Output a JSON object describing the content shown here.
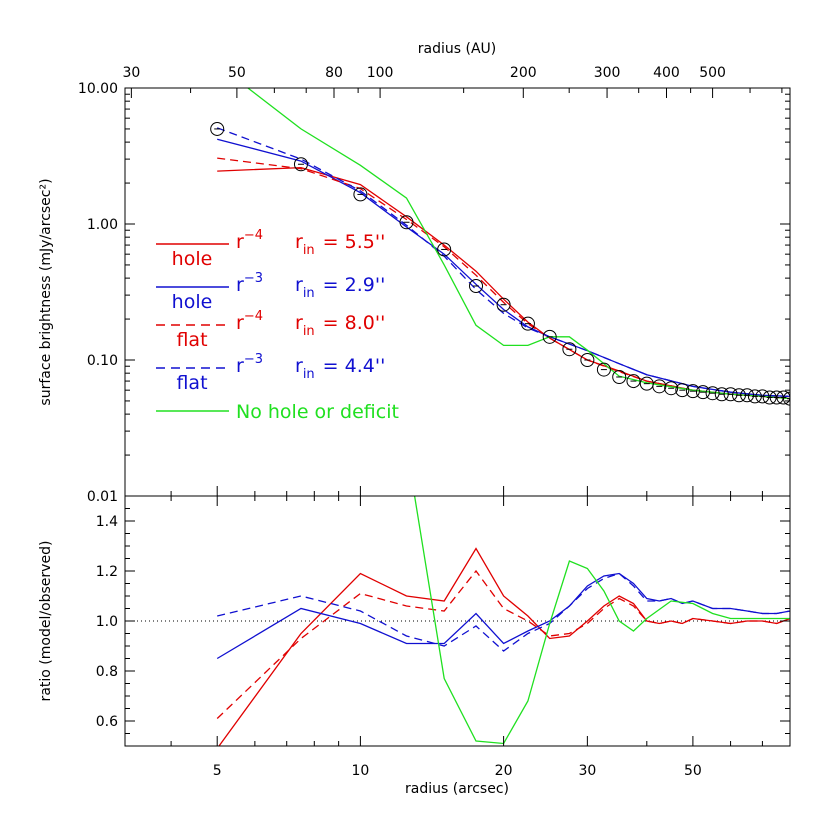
{
  "chart_data": [
    {
      "type": "line",
      "panel": "top",
      "xscale": "log",
      "yscale": "log",
      "xlim": [
        3.2,
        80
      ],
      "ylim": [
        0.01,
        10
      ],
      "ylabel": "surface brightness (mJy/arcsec²)",
      "top_xlabel": "radius (AU)",
      "top_ticks": [
        {
          "label": "30",
          "value": 3.3
        },
        {
          "label": "50",
          "value": 5.5
        },
        {
          "label": "80",
          "value": 8.8
        },
        {
          "label": "100",
          "value": 11
        },
        {
          "label": "200",
          "value": 22
        },
        {
          "label": "300",
          "value": 33
        },
        {
          "label": "400",
          "value": 44
        },
        {
          "label": "500",
          "value": 55
        }
      ],
      "ytick_labels": [
        {
          "label": "10.00",
          "value": 10
        },
        {
          "label": "1.00",
          "value": 1
        },
        {
          "label": "0.10",
          "value": 0.1
        },
        {
          "label": "0.01",
          "value": 0.01
        }
      ],
      "legend_placement": "left-middle",
      "legend": [
        {
          "sub": "hole",
          "text": "r",
          "exp": "−4",
          "rin_label": "r",
          "rin_sub": "in",
          "rin_value": "= 5.5''",
          "color": "#e00000",
          "dash": "solid"
        },
        {
          "sub": "hole",
          "text": "r",
          "exp": "−3",
          "rin_label": "r",
          "rin_sub": "in",
          "rin_value": "= 2.9''",
          "color": "#1010d0",
          "dash": "solid"
        },
        {
          "sub": "flat",
          "text": "r",
          "exp": "−4",
          "rin_label": "r",
          "rin_sub": "in",
          "rin_value": "= 8.0''",
          "color": "#e00000",
          "dash": "dashed"
        },
        {
          "sub": "flat",
          "text": "r",
          "exp": "−3",
          "rin_label": "r",
          "rin_sub": "in",
          "rin_value": "= 4.4''",
          "color": "#1010d0",
          "dash": "dashed"
        },
        {
          "sub": "",
          "text": "No hole or deficit",
          "exp": "",
          "rin_label": "",
          "rin_sub": "",
          "rin_value": "",
          "color": "#20e020",
          "dash": "solid"
        }
      ],
      "observed": {
        "x": [
          5,
          7.5,
          10,
          12.5,
          15,
          17.5,
          20,
          22.5,
          25,
          27.5,
          30,
          32.5,
          35,
          37.5,
          40,
          42.5,
          45,
          47.5,
          50,
          52.5,
          55,
          57.5,
          60,
          62.5,
          65,
          67.5,
          70,
          72.5,
          75,
          77.5,
          80
        ],
        "y": [
          5.0,
          2.75,
          1.65,
          1.03,
          0.65,
          0.35,
          0.255,
          0.185,
          0.148,
          0.12,
          0.1,
          0.085,
          0.075,
          0.07,
          0.067,
          0.064,
          0.062,
          0.06,
          0.059,
          0.058,
          0.057,
          0.056,
          0.056,
          0.055,
          0.055,
          0.054,
          0.054,
          0.053,
          0.053,
          0.053,
          0.052
        ]
      },
      "series": [
        {
          "x": [
            5,
            7.5,
            10,
            12.5,
            15,
            17.5,
            20,
            22.5,
            25,
            30,
            35,
            40,
            50,
            60,
            70,
            80
          ],
          "y": [
            2.45,
            2.6,
            1.95,
            1.13,
            0.7,
            0.45,
            0.28,
            0.19,
            0.145,
            0.1,
            0.083,
            0.07,
            0.06,
            0.056,
            0.054,
            0.052
          ],
          "color": "#e00000",
          "dash": "solid"
        },
        {
          "x": [
            5,
            7.5,
            10,
            12.5,
            15,
            17.5,
            20,
            22.5,
            25,
            30,
            35,
            40,
            50,
            60,
            70,
            80
          ],
          "y": [
            4.2,
            2.9,
            1.7,
            0.95,
            0.6,
            0.36,
            0.235,
            0.175,
            0.148,
            0.117,
            0.094,
            0.078,
            0.064,
            0.058,
            0.055,
            0.054
          ],
          "color": "#1010d0",
          "dash": "solid"
        },
        {
          "x": [
            5,
            7.5,
            10,
            12.5,
            15,
            17.5,
            20,
            22.5,
            25,
            30,
            35,
            40,
            50,
            60,
            70,
            80
          ],
          "y": [
            3.05,
            2.55,
            1.82,
            1.08,
            0.68,
            0.42,
            0.265,
            0.185,
            0.145,
            0.1,
            0.082,
            0.07,
            0.06,
            0.056,
            0.054,
            0.052
          ],
          "color": "#e00000",
          "dash": "dashed"
        },
        {
          "x": [
            5,
            7.5,
            10,
            12.5,
            15,
            17.5,
            20,
            22.5,
            25,
            30,
            35,
            40,
            50,
            60,
            70,
            80
          ],
          "y": [
            5.1,
            3.0,
            1.75,
            0.98,
            0.58,
            0.33,
            0.22,
            0.172,
            0.148,
            0.117,
            0.094,
            0.078,
            0.064,
            0.058,
            0.055,
            0.054
          ],
          "color": "#1010d0",
          "dash": "dashed"
        },
        {
          "x": [
            5.8,
            7.5,
            10,
            12.5,
            15,
            17.5,
            20,
            22.5,
            25,
            27.5,
            30,
            35,
            40,
            50,
            60,
            70,
            80
          ],
          "y": [
            10,
            5.0,
            2.7,
            1.55,
            0.5,
            0.18,
            0.128,
            0.128,
            0.148,
            0.148,
            0.118,
            0.076,
            0.068,
            0.06,
            0.056,
            0.054,
            0.052
          ],
          "color": "#20e020",
          "dash": "solid"
        }
      ]
    },
    {
      "type": "line",
      "panel": "bottom",
      "xscale": "log",
      "xlim": [
        3.2,
        80
      ],
      "ylim": [
        0.5,
        1.5
      ],
      "xlabel": "radius (arcsec)",
      "ylabel": "ratio (model/observed)",
      "xtick_labels": [
        {
          "label": "5",
          "value": 5
        },
        {
          "label": "10",
          "value": 10
        },
        {
          "label": "20",
          "value": 20
        },
        {
          "label": "30",
          "value": 30
        },
        {
          "label": "50",
          "value": 50
        }
      ],
      "ytick_labels": [
        {
          "label": "0.6",
          "value": 0.6
        },
        {
          "label": "0.8",
          "value": 0.8
        },
        {
          "label": "1.0",
          "value": 1.0
        },
        {
          "label": "1.2",
          "value": 1.2
        },
        {
          "label": "1.4",
          "value": 1.4
        }
      ],
      "reference_line": 1.0,
      "series": [
        {
          "x": [
            5,
            7.5,
            10,
            12.5,
            15,
            17.5,
            20,
            22.5,
            25,
            27.5,
            30,
            32.5,
            35,
            37.5,
            40,
            42.5,
            45,
            47.5,
            50,
            55,
            60,
            65,
            70,
            75,
            80
          ],
          "y": [
            0.49,
            0.95,
            1.19,
            1.1,
            1.08,
            1.29,
            1.1,
            1.02,
            0.93,
            0.94,
            1.0,
            1.06,
            1.1,
            1.07,
            1.0,
            0.99,
            1.0,
            0.99,
            1.01,
            1.0,
            0.99,
            1.0,
            1.0,
            0.99,
            1.01
          ],
          "color": "#e00000",
          "dash": "solid"
        },
        {
          "x": [
            5,
            7.5,
            10,
            12.5,
            15,
            17.5,
            20,
            22.5,
            25,
            27.5,
            30,
            32.5,
            35,
            37.5,
            40,
            42.5,
            45,
            47.5,
            50,
            55,
            60,
            65,
            70,
            75,
            80
          ],
          "y": [
            0.85,
            1.05,
            0.99,
            0.91,
            0.91,
            1.03,
            0.91,
            0.96,
            1.0,
            1.06,
            1.14,
            1.18,
            1.19,
            1.15,
            1.09,
            1.08,
            1.09,
            1.07,
            1.08,
            1.05,
            1.05,
            1.04,
            1.03,
            1.03,
            1.04
          ],
          "color": "#1010d0",
          "dash": "solid"
        },
        {
          "x": [
            5,
            7.5,
            10,
            12.5,
            15,
            17.5,
            20,
            22.5,
            25,
            27.5,
            30,
            32.5,
            35,
            37.5,
            40,
            42.5,
            45,
            47.5,
            50,
            55,
            60,
            65,
            70,
            75,
            80
          ],
          "y": [
            0.61,
            0.93,
            1.11,
            1.06,
            1.04,
            1.2,
            1.05,
            1.0,
            0.94,
            0.95,
            0.99,
            1.05,
            1.09,
            1.06,
            1.0,
            0.99,
            1.0,
            0.99,
            1.01,
            1.0,
            0.99,
            1.0,
            1.0,
            0.99,
            1.01
          ],
          "color": "#e00000",
          "dash": "dashed"
        },
        {
          "x": [
            5,
            7.5,
            10,
            12.5,
            15,
            17.5,
            20,
            22.5,
            25,
            27.5,
            30,
            32.5,
            35,
            37.5,
            40,
            42.5,
            45,
            47.5,
            50,
            55,
            60,
            65,
            70,
            75,
            80
          ],
          "y": [
            1.02,
            1.1,
            1.04,
            0.94,
            0.9,
            0.98,
            0.88,
            0.95,
            0.99,
            1.06,
            1.13,
            1.17,
            1.19,
            1.14,
            1.08,
            1.08,
            1.09,
            1.07,
            1.08,
            1.05,
            1.05,
            1.04,
            1.03,
            1.03,
            1.04
          ],
          "color": "#1010d0",
          "dash": "dashed"
        },
        {
          "x": [
            13,
            15,
            17.5,
            20,
            22.5,
            25,
            27.5,
            30,
            32.5,
            35,
            37.5,
            40,
            45,
            50,
            55,
            60,
            70,
            80
          ],
          "y": [
            1.5,
            0.77,
            0.52,
            0.51,
            0.68,
            0.99,
            1.24,
            1.21,
            1.12,
            1.0,
            0.96,
            1.01,
            1.08,
            1.07,
            1.03,
            1.01,
            1.01,
            1.01
          ],
          "color": "#20e020",
          "dash": "solid"
        }
      ]
    }
  ]
}
